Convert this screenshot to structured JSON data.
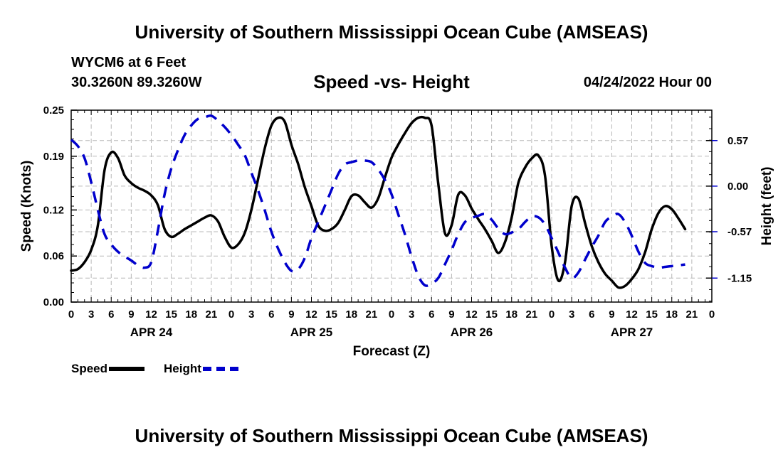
{
  "title": "University of Southern Mississippi Ocean Cube (AMSEAS)",
  "station": "WYCM6 at 6 Feet",
  "coordinates": "30.3260N  89.3260W",
  "subtitle": "Speed -vs- Height",
  "datetime": "04/24/2022 Hour 00",
  "footer_title": "University of Southern Mississippi Ocean Cube (AMSEAS)",
  "legend": {
    "speed_label": "Speed",
    "height_label": "Height",
    "speed_color": "#000000",
    "height_color": "#0000cc"
  },
  "chart_data": {
    "type": "line",
    "xlabel": "Forecast (Z)",
    "ylabel_left": "Speed (Knots)",
    "ylabel_right": "Height (feet)",
    "x_range_hours": [
      0,
      96
    ],
    "x_tick_labels": [
      "0",
      "3",
      "6",
      "9",
      "12",
      "15",
      "18",
      "21",
      "0",
      "3",
      "6",
      "9",
      "12",
      "15",
      "18",
      "21",
      "0",
      "3",
      "6",
      "9",
      "12",
      "15",
      "18",
      "21",
      "0",
      "3",
      "6",
      "9",
      "12",
      "15",
      "18",
      "21",
      "0"
    ],
    "date_labels": [
      {
        "label": "APR 24",
        "hour": 12
      },
      {
        "label": "APR 25",
        "hour": 36
      },
      {
        "label": "APR 26",
        "hour": 60
      },
      {
        "label": "APR 27",
        "hour": 84
      }
    ],
    "speed_axis": {
      "min": 0.0,
      "max": 0.25,
      "ticks": [
        0.0,
        0.06,
        0.12,
        0.19,
        0.25
      ],
      "tick_labels": [
        "0.00",
        "0.06",
        "0.12",
        "0.19",
        "0.25"
      ]
    },
    "height_axis": {
      "min": -1.45,
      "max": 0.95,
      "ticks": [
        -1.15,
        -0.57,
        0.0,
        0.57
      ],
      "tick_labels": [
        "-1.15",
        "-0.57",
        "0.00",
        "0.57"
      ]
    },
    "grid": true,
    "series": [
      {
        "name": "Speed",
        "axis": "left",
        "color": "#000000",
        "style": "solid",
        "points": [
          [
            0,
            0.041
          ],
          [
            1,
            0.043
          ],
          [
            2,
            0.052
          ],
          [
            3,
            0.068
          ],
          [
            4,
            0.1
          ],
          [
            5,
            0.172
          ],
          [
            6,
            0.195
          ],
          [
            7,
            0.188
          ],
          [
            8,
            0.165
          ],
          [
            9,
            0.155
          ],
          [
            10,
            0.149
          ],
          [
            11,
            0.145
          ],
          [
            12,
            0.139
          ],
          [
            13,
            0.126
          ],
          [
            14,
            0.095
          ],
          [
            15,
            0.085
          ],
          [
            16,
            0.089
          ],
          [
            17,
            0.095
          ],
          [
            18,
            0.1
          ],
          [
            19,
            0.105
          ],
          [
            20,
            0.11
          ],
          [
            21,
            0.113
          ],
          [
            22,
            0.105
          ],
          [
            23,
            0.085
          ],
          [
            24,
            0.071
          ],
          [
            25,
            0.075
          ],
          [
            26,
            0.09
          ],
          [
            27,
            0.12
          ],
          [
            28,
            0.16
          ],
          [
            29,
            0.2
          ],
          [
            30,
            0.23
          ],
          [
            31,
            0.24
          ],
          [
            32,
            0.235
          ],
          [
            33,
            0.205
          ],
          [
            34,
            0.18
          ],
          [
            35,
            0.15
          ],
          [
            36,
            0.125
          ],
          [
            37,
            0.1
          ],
          [
            38,
            0.093
          ],
          [
            39,
            0.095
          ],
          [
            40,
            0.103
          ],
          [
            41,
            0.12
          ],
          [
            42,
            0.138
          ],
          [
            43,
            0.139
          ],
          [
            44,
            0.13
          ],
          [
            45,
            0.123
          ],
          [
            46,
            0.135
          ],
          [
            47,
            0.162
          ],
          [
            48,
            0.188
          ],
          [
            49,
            0.205
          ],
          [
            50,
            0.22
          ],
          [
            51,
            0.233
          ],
          [
            52,
            0.24
          ],
          [
            53,
            0.24
          ],
          [
            54,
            0.23
          ],
          [
            55,
            0.155
          ],
          [
            56,
            0.09
          ],
          [
            57,
            0.1
          ],
          [
            58,
            0.14
          ],
          [
            59,
            0.139
          ],
          [
            60,
            0.122
          ],
          [
            61,
            0.108
          ],
          [
            62,
            0.095
          ],
          [
            63,
            0.08
          ],
          [
            64,
            0.064
          ],
          [
            65,
            0.078
          ],
          [
            66,
            0.11
          ],
          [
            67,
            0.155
          ],
          [
            68,
            0.175
          ],
          [
            69,
            0.187
          ],
          [
            70,
            0.191
          ],
          [
            71,
            0.165
          ],
          [
            72,
            0.073
          ],
          [
            73,
            0.028
          ],
          [
            74,
            0.052
          ],
          [
            75,
            0.125
          ],
          [
            76,
            0.135
          ],
          [
            77,
            0.103
          ],
          [
            78,
            0.073
          ],
          [
            79,
            0.052
          ],
          [
            80,
            0.037
          ],
          [
            81,
            0.028
          ],
          [
            82,
            0.019
          ],
          [
            83,
            0.021
          ],
          [
            84,
            0.03
          ],
          [
            85,
            0.043
          ],
          [
            86,
            0.065
          ],
          [
            87,
            0.095
          ],
          [
            88,
            0.116
          ],
          [
            89,
            0.125
          ],
          [
            90,
            0.121
          ],
          [
            91,
            0.109
          ],
          [
            92,
            0.095
          ]
        ]
      },
      {
        "name": "Height",
        "axis": "right",
        "color": "#0000cc",
        "style": "dashed",
        "points": [
          [
            0,
            0.58
          ],
          [
            1,
            0.5
          ],
          [
            2,
            0.35
          ],
          [
            3,
            0.05
          ],
          [
            4,
            -0.3
          ],
          [
            5,
            -0.6
          ],
          [
            6,
            -0.73
          ],
          [
            7,
            -0.82
          ],
          [
            8,
            -0.88
          ],
          [
            9,
            -0.93
          ],
          [
            10,
            -0.99
          ],
          [
            11,
            -1.02
          ],
          [
            12,
            -0.95
          ],
          [
            13,
            -0.55
          ],
          [
            14,
            -0.1
          ],
          [
            15,
            0.22
          ],
          [
            16,
            0.45
          ],
          [
            17,
            0.64
          ],
          [
            18,
            0.76
          ],
          [
            19,
            0.84
          ],
          [
            20,
            0.86
          ],
          [
            21,
            0.88
          ],
          [
            22,
            0.82
          ],
          [
            23,
            0.74
          ],
          [
            24,
            0.64
          ],
          [
            25,
            0.52
          ],
          [
            26,
            0.39
          ],
          [
            27,
            0.17
          ],
          [
            28,
            -0.05
          ],
          [
            29,
            -0.3
          ],
          [
            30,
            -0.57
          ],
          [
            31,
            -0.78
          ],
          [
            32,
            -0.95
          ],
          [
            33,
            -1.06
          ],
          [
            34,
            -1.04
          ],
          [
            35,
            -0.9
          ],
          [
            36,
            -0.65
          ],
          [
            37,
            -0.45
          ],
          [
            38,
            -0.25
          ],
          [
            39,
            -0.05
          ],
          [
            40,
            0.15
          ],
          [
            41,
            0.27
          ],
          [
            42,
            0.3
          ],
          [
            43,
            0.32
          ],
          [
            44,
            0.32
          ],
          [
            45,
            0.3
          ],
          [
            46,
            0.21
          ],
          [
            47,
            0.08
          ],
          [
            48,
            -0.1
          ],
          [
            49,
            -0.35
          ],
          [
            50,
            -0.6
          ],
          [
            51,
            -0.88
          ],
          [
            52,
            -1.12
          ],
          [
            53,
            -1.24
          ],
          [
            54,
            -1.22
          ],
          [
            55,
            -1.15
          ],
          [
            56,
            -0.98
          ],
          [
            57,
            -0.8
          ],
          [
            58,
            -0.6
          ],
          [
            59,
            -0.45
          ],
          [
            60,
            -0.4
          ],
          [
            61,
            -0.37
          ],
          [
            62,
            -0.35
          ],
          [
            63,
            -0.42
          ],
          [
            64,
            -0.53
          ],
          [
            65,
            -0.6
          ],
          [
            66,
            -0.58
          ],
          [
            67,
            -0.54
          ],
          [
            68,
            -0.45
          ],
          [
            69,
            -0.38
          ],
          [
            70,
            -0.39
          ],
          [
            71,
            -0.48
          ],
          [
            72,
            -0.65
          ],
          [
            73,
            -0.83
          ],
          [
            74,
            -1.02
          ],
          [
            75,
            -1.15
          ],
          [
            76,
            -1.08
          ],
          [
            77,
            -0.92
          ],
          [
            78,
            -0.76
          ],
          [
            79,
            -0.62
          ],
          [
            80,
            -0.45
          ],
          [
            81,
            -0.38
          ],
          [
            82,
            -0.35
          ],
          [
            83,
            -0.45
          ],
          [
            84,
            -0.62
          ],
          [
            85,
            -0.82
          ],
          [
            86,
            -0.96
          ],
          [
            87,
            -1.0
          ],
          [
            88,
            -1.02
          ],
          [
            89,
            -1.01
          ],
          [
            90,
            -1.0
          ],
          [
            91,
            -0.99
          ],
          [
            92,
            -0.98
          ]
        ]
      }
    ]
  }
}
